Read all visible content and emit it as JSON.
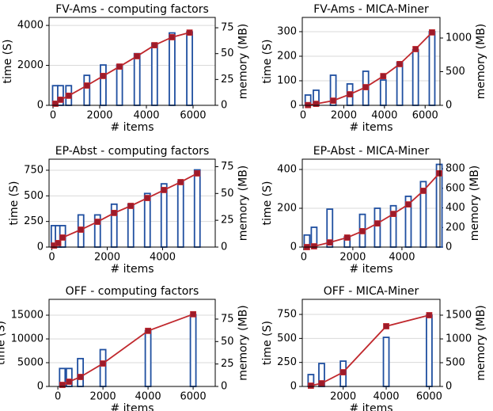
{
  "chart_data": [
    {
      "type": "bar_line",
      "title": "FV-Ams - computing factors",
      "xlabel": "# items",
      "ylabel": "time (S)",
      "y2label": "memory (MB)",
      "x": [
        100,
        320,
        670,
        1450,
        2150,
        2850,
        3600,
        4350,
        5100,
        5850
      ],
      "xlim": [
        -170,
        6950
      ],
      "xticks": [
        0,
        2000,
        4000,
        6000
      ],
      "ylim": [
        0,
        4400
      ],
      "yticks": [
        0,
        2000,
        4000
      ],
      "y2lim": [
        0,
        85
      ],
      "y2ticks": [
        0,
        25,
        50,
        75
      ],
      "grid": true,
      "series": [
        {
          "type": "line",
          "color": "#c0282d",
          "marker_color": "#9e1b2a",
          "values": [
            80,
            280,
            480,
            990,
            1470,
            1940,
            2460,
            3010,
            3410,
            3640
          ]
        },
        {
          "type": "bar",
          "axis": "y2",
          "color": "#1f4fa0",
          "values": [
            19,
            19,
            19,
            29,
            39,
            39,
            50,
            60,
            70,
            71
          ]
        }
      ]
    },
    {
      "type": "bar_line",
      "title": "FV-Ams - MICA-Miner",
      "xlabel": "# items",
      "ylabel": "time (S)",
      "y2label": "memory (MB)",
      "x": [
        240,
        640,
        1480,
        2300,
        3080,
        3940,
        4750,
        5530,
        6340
      ],
      "xlim": [
        -40,
        6730
      ],
      "xticks": [
        0,
        2000,
        4000,
        6000
      ],
      "ylim": [
        0,
        358
      ],
      "yticks": [
        0,
        100,
        200,
        300
      ],
      "y2lim": [
        0,
        1306
      ],
      "y2ticks": [
        0,
        500,
        1000
      ],
      "grid": true,
      "series": [
        {
          "type": "line",
          "color": "#c0282d",
          "marker_color": "#9e1b2a",
          "values": [
            1,
            6,
            19,
            45,
            74,
            119,
            168,
            229,
            297
          ]
        },
        {
          "type": "bar",
          "axis": "y2",
          "color": "#1f4fa0",
          "values": [
            153,
            224,
            447,
            318,
            506,
            376,
            635,
            824,
            1094
          ]
        }
      ]
    },
    {
      "type": "bar_line",
      "title": "EP-Abst - computing factors",
      "xlabel": "# items",
      "ylabel": "time (S)",
      "y2label": "memory (MB)",
      "x": [
        80,
        230,
        390,
        1050,
        1650,
        2250,
        2850,
        3450,
        4050,
        4650,
        5250
      ],
      "xlim": [
        -100,
        5900
      ],
      "xticks": [
        0,
        2000,
        4000
      ],
      "ylim": [
        0,
        858
      ],
      "yticks": [
        0,
        250,
        500,
        750
      ],
      "y2lim": [
        0,
        82
      ],
      "y2ticks": [
        0,
        25,
        50,
        75
      ],
      "grid": true,
      "series": [
        {
          "type": "line",
          "color": "#c0282d",
          "marker_color": "#9e1b2a",
          "values": [
            15,
            39,
            93,
            170,
            247,
            333,
            402,
            479,
            557,
            634,
            719
          ]
        },
        {
          "type": "bar",
          "axis": "y2",
          "color": "#1f4fa0",
          "values": [
            20,
            20,
            20,
            30,
            30,
            40,
            40,
            50,
            59,
            61,
            72
          ]
        }
      ]
    },
    {
      "type": "bar_line",
      "title": "EP-Abst - MICA-Miner",
      "xlabel": "# items",
      "ylabel": "time (S)",
      "y2label": "memory (MB)",
      "x": [
        130,
        420,
        1060,
        1770,
        2390,
        3000,
        3650,
        4260,
        4870,
        5520
      ],
      "xlim": [
        -60,
        5550
      ],
      "xticks": [
        0,
        2000,
        4000
      ],
      "ylim": [
        0,
        453
      ],
      "yticks": [
        0,
        200,
        400
      ],
      "y2lim": [
        0,
        897
      ],
      "y2ticks": [
        0,
        200,
        400,
        600,
        800
      ],
      "grid": true,
      "series": [
        {
          "type": "line",
          "color": "#c0282d",
          "marker_color": "#9e1b2a",
          "values": [
            0,
            4,
            24,
            49,
            82,
            122,
            171,
            220,
            290,
            380
          ]
        },
        {
          "type": "bar",
          "axis": "y2",
          "color": "#1f4fa0",
          "values": [
            123,
            202,
            387,
            105,
            334,
            396,
            422,
            518,
            668,
            844
          ]
        }
      ]
    },
    {
      "type": "bar_line",
      "title": "OFF - computing factors",
      "xlabel": "# items",
      "ylabel": "time (S)",
      "y2label": "memory (MB)",
      "x": [
        200,
        500,
        1000,
        2000,
        4000,
        6000
      ],
      "xlim": [
        -390,
        6980
      ],
      "xticks": [
        0,
        2000,
        4000,
        6000
      ],
      "ylim": [
        0,
        18333
      ],
      "yticks": [
        0,
        5000,
        10000,
        15000
      ],
      "y2lim": [
        0,
        97
      ],
      "y2ticks": [
        0,
        25,
        50,
        75
      ],
      "grid": true,
      "series": [
        {
          "type": "line",
          "color": "#c0282d",
          "marker_color": "#9e1b2a",
          "values": [
            330,
            1000,
            2000,
            4830,
            11700,
            15200
          ]
        },
        {
          "type": "bar",
          "axis": "y2",
          "color": "#1f4fa0",
          "values": [
            20,
            20,
            31,
            41,
            62,
            80
          ]
        }
      ]
    },
    {
      "type": "bar_line",
      "title": "OFF - MICA-Miner",
      "xlabel": "# items",
      "ylabel": "time (S)",
      "y2label": "memory (MB)",
      "x": [
        500,
        1000,
        2000,
        4000,
        6000
      ],
      "xlim": [
        100,
        6500
      ],
      "xticks": [
        2000,
        4000,
        6000
      ],
      "ylim": [
        0,
        907
      ],
      "yticks": [
        0,
        250,
        500,
        750
      ],
      "y2lim": [
        0,
        1833
      ],
      "y2ticks": [
        0,
        500,
        1000,
        1500
      ],
      "grid": true,
      "series": [
        {
          "type": "line",
          "color": "#c0282d",
          "marker_color": "#9e1b2a",
          "values": [
            8,
            33,
            148,
            627,
            742
          ]
        },
        {
          "type": "bar",
          "axis": "y2",
          "color": "#1f4fa0",
          "values": [
            250,
            483,
            533,
            1033,
            1500
          ]
        }
      ]
    }
  ]
}
